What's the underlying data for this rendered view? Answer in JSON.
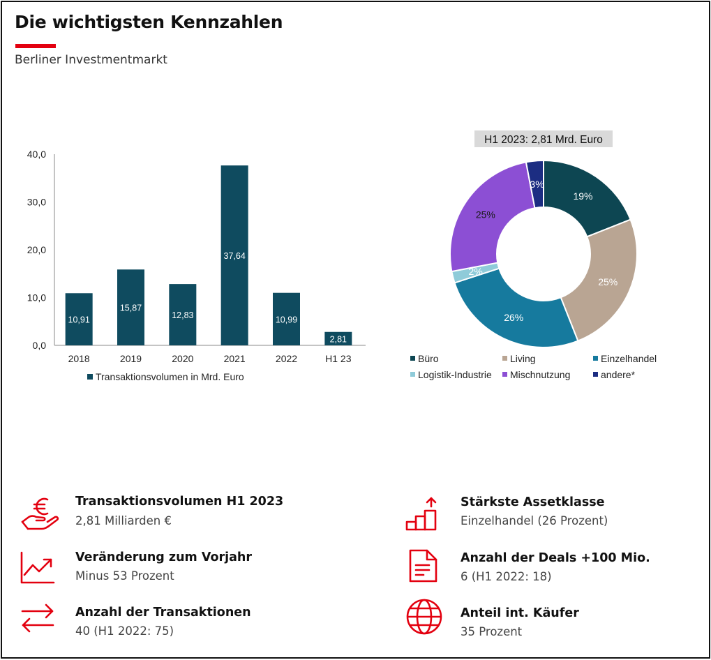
{
  "header": {
    "title": "Die wichtigsten Kennzahlen",
    "subtitle": "Berliner Investmentmarkt"
  },
  "colors": {
    "accent_red": "#e3000f",
    "bar": "#0f4b5f"
  },
  "chart_data": [
    {
      "type": "bar",
      "categories": [
        "2018",
        "2019",
        "2020",
        "2021",
        "2022",
        "H1 23"
      ],
      "values": [
        10.91,
        15.87,
        12.83,
        37.64,
        10.99,
        2.81
      ],
      "value_labels": [
        "10,91",
        "15,87",
        "12,83",
        "37,64",
        "10,99",
        "2,81"
      ],
      "ylim": [
        0,
        40
      ],
      "yticks": [
        "0,0",
        "10,0",
        "20,0",
        "30,0",
        "40,0"
      ],
      "series": [
        {
          "name": "Transaktionsvolumen in Mrd. Euro",
          "color": "#0f4b5f"
        }
      ],
      "grid": false,
      "legend_position": "bottom"
    },
    {
      "type": "pie",
      "style": "donut",
      "title": "H1 2023: 2,81 Mrd. Euro",
      "slices": [
        {
          "label": "Büro",
          "value": 19,
          "display": "19%",
          "color": "#0d4652"
        },
        {
          "label": "Living",
          "value": 25,
          "display": "25%",
          "color": "#b9a593"
        },
        {
          "label": "Einzelhandel",
          "value": 26,
          "display": "26%",
          "color": "#167a9e"
        },
        {
          "label": "Logistik-Industrie",
          "value": 2,
          "display": "2%",
          "color": "#8fcbd9"
        },
        {
          "label": "Mischnutzung",
          "value": 25,
          "display": "25%",
          "color": "#8c4fd4"
        },
        {
          "label": "andere*",
          "value": 3,
          "display": "3%",
          "color": "#1c2d82"
        }
      ],
      "legend_position": "bottom"
    }
  ],
  "kpis": [
    {
      "icon": "euro-hand-icon",
      "label": "Transaktionsvolumen H1 2023",
      "value": "2,81 Milliarden €"
    },
    {
      "icon": "trend-up-icon",
      "label": "Veränderung zum Vorjahr",
      "value": "Minus 53 Prozent"
    },
    {
      "icon": "transfer-arrows-icon",
      "label": "Anzahl der Transaktionen",
      "value": "40 (H1 2022: 75)"
    },
    {
      "icon": "bar-growth-icon",
      "label": "Stärkste Assetklasse",
      "value": "Einzelhandel (26 Prozent)"
    },
    {
      "icon": "document-icon",
      "label": "Anzahl der Deals +100 Mio.",
      "value": "6 (H1 2022: 18)"
    },
    {
      "icon": "globe-icon",
      "label": "Anteil int. Käufer",
      "value": "35 Prozent"
    }
  ]
}
